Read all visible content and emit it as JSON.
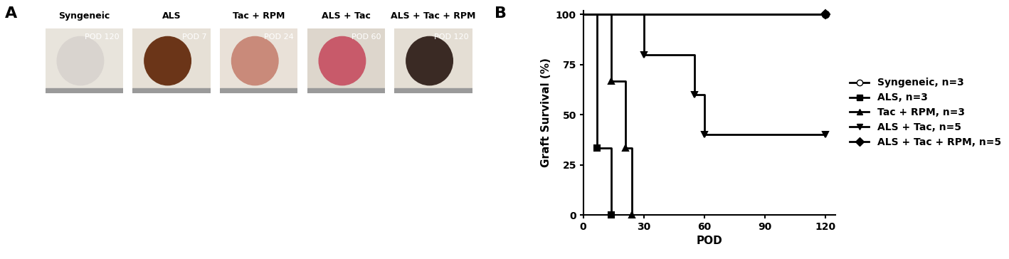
{
  "panel_labels": [
    "A",
    "B"
  ],
  "photos": [
    {
      "title": "Syngeneic",
      "pod": "POD 120"
    },
    {
      "title": "ALS",
      "pod": "POD 7"
    },
    {
      "title": "Tac + RPM",
      "pod": "POD 24"
    },
    {
      "title": "ALS + Tac",
      "pod": "POD 60"
    },
    {
      "title": "ALS + Tac + RPM",
      "pod": "POD 120"
    }
  ],
  "chart_data": {
    "type": "line",
    "x_label": "POD",
    "y_label": "Graft Survival (%)",
    "xlim": [
      0,
      125
    ],
    "xticks": [
      0,
      30,
      60,
      90,
      120
    ],
    "ylim": [
      0,
      102
    ],
    "yticks": [
      0,
      25,
      50,
      75,
      100
    ],
    "legend": "center left",
    "line_style": "steps",
    "series": [
      {
        "name": "Syngeneic, n=3",
        "color": "#000000",
        "marker": "circle_open",
        "x": [
          0,
          120
        ],
        "values": [
          100,
          100
        ]
      },
      {
        "name": "ALS, n=3",
        "color": "#000000",
        "marker": "square",
        "x": [
          0,
          7,
          14
        ],
        "values": [
          100,
          33.3,
          0
        ]
      },
      {
        "name": "Tac + RPM, n=3",
        "color": "#000000",
        "marker": "triangle_up",
        "x": [
          0,
          14,
          21,
          24
        ],
        "values": [
          100,
          66.7,
          33.3,
          0
        ]
      },
      {
        "name": "ALS + Tac, n=5",
        "color": "#000000",
        "marker": "triangle_down",
        "x": [
          0,
          30,
          55,
          60,
          120
        ],
        "values": [
          100,
          80,
          60,
          40,
          40
        ]
      },
      {
        "name": "ALS + Tac + RPM, n=5",
        "color": "#000000",
        "marker": "diamond",
        "x": [
          0,
          120
        ],
        "values": [
          100,
          100
        ]
      }
    ]
  }
}
